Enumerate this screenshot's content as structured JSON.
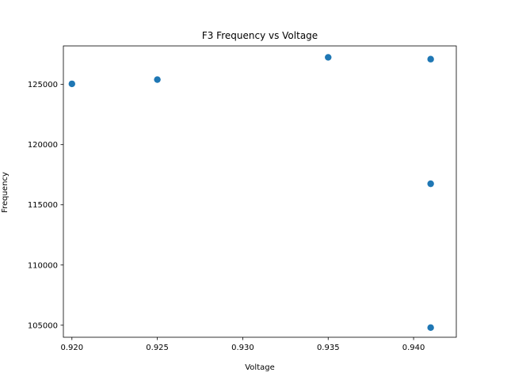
{
  "chart_data": {
    "type": "scatter",
    "title": "F3 Frequency vs Voltage",
    "xlabel": "Voltage",
    "ylabel": "Frequency",
    "xlim": [
      0.9195,
      0.9425
    ],
    "ylim": [
      104000,
      128200
    ],
    "xticks": [
      0.92,
      0.925,
      0.93,
      0.935,
      0.94
    ],
    "xtick_labels": [
      "0.920",
      "0.925",
      "0.930",
      "0.935",
      "0.940"
    ],
    "yticks": [
      105000,
      110000,
      115000,
      120000,
      125000
    ],
    "ytick_labels": [
      "105000",
      "110000",
      "115000",
      "120000",
      "125000"
    ],
    "grid": false,
    "marker_color": "#1f77b4",
    "points": [
      {
        "x": 0.92,
        "y": 125050
      },
      {
        "x": 0.925,
        "y": 125400
      },
      {
        "x": 0.935,
        "y": 127250
      },
      {
        "x": 0.941,
        "y": 127100
      },
      {
        "x": 0.941,
        "y": 116750
      },
      {
        "x": 0.941,
        "y": 104800
      }
    ]
  }
}
